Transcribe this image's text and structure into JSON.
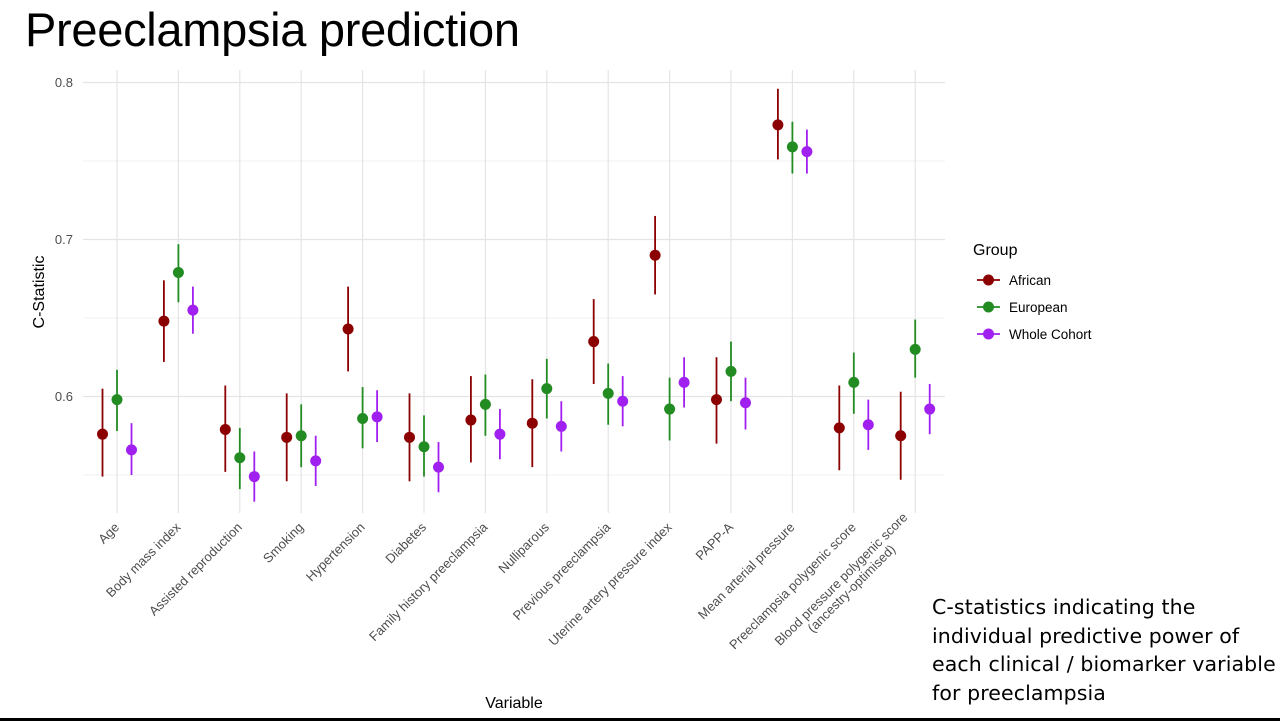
{
  "slide": {
    "title": "Preeclampsia prediction",
    "caption": "C-statistics indicating the individual predictive power of each clinical / biomarker variable for preeclampsia"
  },
  "chart_data": {
    "type": "scatter",
    "subtype": "point-range with error bars",
    "xlabel": "Variable",
    "ylabel": "C-Statistic",
    "ylim": [
      0.525,
      0.81
    ],
    "yticks": [
      0.6,
      0.7,
      0.8
    ],
    "ytick_labels": [
      "0.6",
      "0.7",
      "0.8"
    ],
    "grid": true,
    "legend_position": "right",
    "legend_title": "Group",
    "categories": [
      [
        "Age"
      ],
      [
        "Body mass index"
      ],
      [
        "Assisted reproduction"
      ],
      [
        "Smoking"
      ],
      [
        "Hypertension"
      ],
      [
        "Diabetes"
      ],
      [
        "Family history preeclampsia"
      ],
      [
        "Nulliparous"
      ],
      [
        "Previous preeclampsia"
      ],
      [
        "Uterine artery pressure index"
      ],
      [
        "PAPP-A"
      ],
      [
        "Mean arterial pressure"
      ],
      [
        "Preeclampsia polygenic score"
      ],
      [
        "Blood pressure polygenic score",
        "(ancestry-optimised)"
      ]
    ],
    "series": [
      {
        "name": "African",
        "color": "#8b0000",
        "values": [
          0.576,
          0.648,
          0.579,
          0.574,
          0.643,
          0.574,
          0.585,
          0.583,
          0.635,
          0.69,
          0.598,
          0.773,
          0.58,
          0.575
        ],
        "lower": [
          0.549,
          0.622,
          0.552,
          0.546,
          0.616,
          0.546,
          0.558,
          0.555,
          0.608,
          0.665,
          0.57,
          0.751,
          0.553,
          0.547
        ],
        "upper": [
          0.605,
          0.674,
          0.607,
          0.602,
          0.67,
          0.602,
          0.613,
          0.611,
          0.662,
          0.715,
          0.625,
          0.796,
          0.607,
          0.603
        ]
      },
      {
        "name": "European",
        "color": "#228b22",
        "values": [
          0.598,
          0.679,
          0.561,
          0.575,
          0.586,
          0.568,
          0.595,
          0.605,
          0.602,
          0.592,
          0.616,
          0.759,
          0.609,
          0.63
        ],
        "lower": [
          0.578,
          0.66,
          0.541,
          0.555,
          0.567,
          0.549,
          0.575,
          0.586,
          0.582,
          0.572,
          0.597,
          0.742,
          0.589,
          0.612
        ],
        "upper": [
          0.617,
          0.697,
          0.58,
          0.595,
          0.606,
          0.588,
          0.614,
          0.624,
          0.621,
          0.612,
          0.635,
          0.775,
          0.628,
          0.649
        ]
      },
      {
        "name": "Whole Cohort",
        "color": "#a020f0",
        "values": [
          0.566,
          0.655,
          0.549,
          0.559,
          0.587,
          0.555,
          0.576,
          0.581,
          0.597,
          0.609,
          0.596,
          0.756,
          0.582,
          0.592
        ],
        "lower": [
          0.55,
          0.64,
          0.533,
          0.543,
          0.571,
          0.539,
          0.56,
          0.565,
          0.581,
          0.593,
          0.579,
          0.742,
          0.566,
          0.576
        ],
        "upper": [
          0.583,
          0.67,
          0.565,
          0.575,
          0.604,
          0.571,
          0.592,
          0.597,
          0.613,
          0.625,
          0.612,
          0.77,
          0.598,
          0.608
        ]
      }
    ]
  }
}
